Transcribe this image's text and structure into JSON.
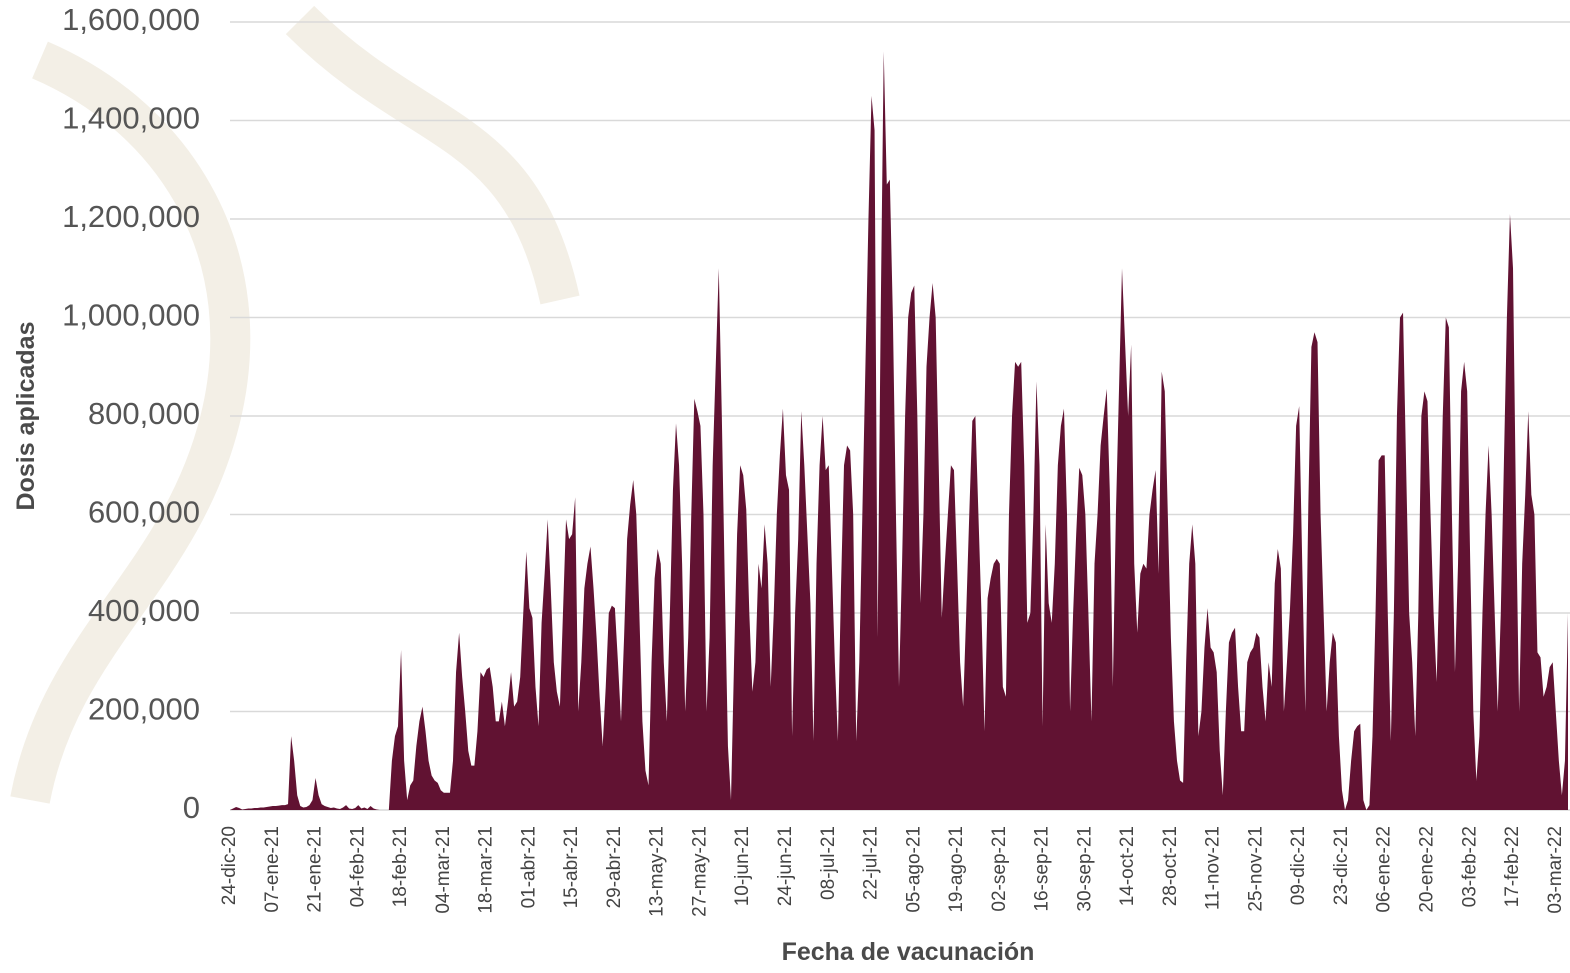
{
  "chart_data": {
    "type": "area",
    "x_label": "Fecha de vacunación",
    "y_label": "Dosis aplicadas",
    "color": "#611232",
    "grid": true,
    "ylim": [
      0,
      1600000
    ],
    "yticks": [
      {
        "value": 0,
        "label": "0"
      },
      {
        "value": 200000,
        "label": "200,000"
      },
      {
        "value": 400000,
        "label": "400,000"
      },
      {
        "value": 600000,
        "label": "600,000"
      },
      {
        "value": 800000,
        "label": "800,000"
      },
      {
        "value": 1000000,
        "label": "1,000,000"
      },
      {
        "value": 1200000,
        "label": "1,200,000"
      },
      {
        "value": 1400000,
        "label": "1,400,000"
      },
      {
        "value": 1600000,
        "label": "1,600,000"
      }
    ],
    "categories": [
      "24-dic-20",
      null,
      null,
      null,
      null,
      null,
      null,
      null,
      null,
      null,
      null,
      null,
      null,
      null,
      "07-ene-21",
      null,
      null,
      null,
      null,
      null,
      null,
      null,
      null,
      null,
      null,
      null,
      null,
      null,
      "21-ene-21",
      null,
      null,
      null,
      null,
      null,
      null,
      null,
      null,
      null,
      null,
      null,
      null,
      null,
      "04-feb-21",
      null,
      null,
      null,
      null,
      null,
      null,
      null,
      null,
      null,
      null,
      null,
      null,
      null,
      "18-feb-21",
      null,
      null,
      null,
      null,
      null,
      null,
      null,
      null,
      null,
      null,
      null,
      null,
      null,
      "04-mar-21",
      null,
      null,
      null,
      null,
      null,
      null,
      null,
      null,
      null,
      null,
      null,
      null,
      null,
      "18-mar-21",
      null,
      null,
      null,
      null,
      null,
      null,
      null,
      null,
      null,
      null,
      null,
      null,
      null,
      "01-abr-21",
      null,
      null,
      null,
      null,
      null,
      null,
      null,
      null,
      null,
      null,
      null,
      null,
      null,
      "15-abr-21",
      null,
      null,
      null,
      null,
      null,
      null,
      null,
      null,
      null,
      null,
      null,
      null,
      null,
      "29-abr-21",
      null,
      null,
      null,
      null,
      null,
      null,
      null,
      null,
      null,
      null,
      null,
      null,
      null,
      "13-may-21",
      null,
      null,
      null,
      null,
      null,
      null,
      null,
      null,
      null,
      null,
      null,
      null,
      null,
      "27-may-21",
      null,
      null,
      null,
      null,
      null,
      null,
      null,
      null,
      null,
      null,
      null,
      null,
      null,
      "10-jun-21",
      null,
      null,
      null,
      null,
      null,
      null,
      null,
      null,
      null,
      null,
      null,
      null,
      null,
      "24-jun-21",
      null,
      null,
      null,
      null,
      null,
      null,
      null,
      null,
      null,
      null,
      null,
      null,
      null,
      "08-jul-21",
      null,
      null,
      null,
      null,
      null,
      null,
      null,
      null,
      null,
      null,
      null,
      null,
      null,
      "22-jul-21",
      null,
      null,
      null,
      null,
      null,
      null,
      null,
      null,
      null,
      null,
      null,
      null,
      null,
      "05-ago-21",
      null,
      null,
      null,
      null,
      null,
      null,
      null,
      null,
      null,
      null,
      null,
      null,
      null,
      "19-ago-21",
      null,
      null,
      null,
      null,
      null,
      null,
      null,
      null,
      null,
      null,
      null,
      null,
      null,
      "02-sep-21",
      null,
      null,
      null,
      null,
      null,
      null,
      null,
      null,
      null,
      null,
      null,
      null,
      null,
      "16-sep-21",
      null,
      null,
      null,
      null,
      null,
      null,
      null,
      null,
      null,
      null,
      null,
      null,
      null,
      "30-sep-21",
      null,
      null,
      null,
      null,
      null,
      null,
      null,
      null,
      null,
      null,
      null,
      null,
      null,
      "14-oct-21",
      null,
      null,
      null,
      null,
      null,
      null,
      null,
      null,
      null,
      null,
      null,
      null,
      null,
      "28-oct-21",
      null,
      null,
      null,
      null,
      null,
      null,
      null,
      null,
      null,
      null,
      null,
      null,
      null,
      "11-nov-21",
      null,
      null,
      null,
      null,
      null,
      null,
      null,
      null,
      null,
      null,
      null,
      null,
      null,
      "25-nov-21",
      null,
      null,
      null,
      null,
      null,
      null,
      null,
      null,
      null,
      null,
      null,
      null,
      null,
      "09-dic-21",
      null,
      null,
      null,
      null,
      null,
      null,
      null,
      null,
      null,
      null,
      null,
      null,
      null,
      "23-dic-21",
      null,
      null,
      null,
      null,
      null,
      null,
      null,
      null,
      null,
      null,
      null,
      null,
      null,
      "06-ene-22",
      null,
      null,
      null,
      null,
      null,
      null,
      null,
      null,
      null,
      null,
      null,
      null,
      null,
      "20-ene-22",
      null,
      null,
      null,
      null,
      null,
      null,
      null,
      null,
      null,
      null,
      null,
      null,
      null,
      "03-feb-22",
      null,
      null,
      null,
      null,
      null,
      null,
      null,
      null,
      null,
      null,
      null,
      null,
      null,
      "17-feb-22",
      null,
      null,
      null,
      null,
      null,
      null,
      null,
      null,
      null,
      null,
      null,
      null,
      null,
      "03-mar-22",
      null,
      null,
      null,
      null
    ],
    "values": [
      0,
      3000,
      6000,
      4000,
      1000,
      2000,
      3000,
      3000,
      4000,
      4000,
      5000,
      5000,
      6000,
      7000,
      8000,
      8000,
      9000,
      10000,
      10000,
      12000,
      150000,
      100000,
      30000,
      8000,
      5000,
      6000,
      10000,
      20000,
      65000,
      30000,
      12000,
      8000,
      6000,
      4000,
      5000,
      3000,
      2000,
      5000,
      10000,
      3000,
      2000,
      4000,
      10000,
      3000,
      5000,
      2000,
      8000,
      3000,
      1000,
      0,
      0,
      0,
      0,
      100000,
      150000,
      170000,
      325000,
      100000,
      20000,
      50000,
      60000,
      130000,
      180000,
      210000,
      160000,
      100000,
      70000,
      60000,
      55000,
      40000,
      35000,
      35000,
      35000,
      100000,
      280000,
      360000,
      270000,
      200000,
      120000,
      90000,
      90000,
      160000,
      280000,
      270000,
      285000,
      290000,
      250000,
      180000,
      180000,
      220000,
      170000,
      220000,
      280000,
      210000,
      220000,
      270000,
      400000,
      525000,
      410000,
      390000,
      250000,
      170000,
      380000,
      480000,
      590000,
      450000,
      300000,
      240000,
      210000,
      400000,
      590000,
      550000,
      560000,
      635000,
      200000,
      300000,
      450000,
      500000,
      535000,
      450000,
      350000,
      230000,
      130000,
      250000,
      400000,
      415000,
      410000,
      300000,
      180000,
      350000,
      550000,
      620000,
      670000,
      600000,
      400000,
      180000,
      80000,
      50000,
      300000,
      470000,
      530000,
      500000,
      300000,
      180000,
      400000,
      650000,
      785000,
      700000,
      500000,
      200000,
      350000,
      600000,
      835000,
      810000,
      780000,
      600000,
      200000,
      350000,
      700000,
      900000,
      1100000,
      800000,
      450000,
      130000,
      20000,
      300000,
      560000,
      700000,
      680000,
      610000,
      400000,
      240000,
      300000,
      500000,
      450000,
      580000,
      500000,
      250000,
      400000,
      600000,
      720000,
      815000,
      680000,
      650000,
      150000,
      400000,
      550000,
      810000,
      700000,
      560000,
      420000,
      140000,
      500000,
      700000,
      800000,
      690000,
      700000,
      500000,
      300000,
      140000,
      450000,
      700000,
      740000,
      730000,
      600000,
      140000,
      300000,
      600000,
      900000,
      1200000,
      1450000,
      1380000,
      350000,
      1000000,
      1540000,
      1270000,
      1280000,
      1000000,
      600000,
      250000,
      500000,
      800000,
      1000000,
      1050000,
      1065000,
      800000,
      420000,
      600000,
      900000,
      1000000,
      1070000,
      1000000,
      700000,
      390000,
      500000,
      600000,
      700000,
      690000,
      500000,
      300000,
      210000,
      400000,
      600000,
      790000,
      800000,
      600000,
      400000,
      160000,
      430000,
      470000,
      500000,
      510000,
      500000,
      250000,
      230000,
      600000,
      800000,
      910000,
      900000,
      910000,
      700000,
      380000,
      400000,
      600000,
      870000,
      700000,
      170000,
      580000,
      420000,
      380000,
      500000,
      700000,
      780000,
      815000,
      600000,
      200000,
      400000,
      560000,
      695000,
      680000,
      600000,
      400000,
      180000,
      500000,
      600000,
      740000,
      800000,
      855000,
      650000,
      250000,
      600000,
      850000,
      1100000,
      950000,
      800000,
      945000,
      500000,
      360000,
      480000,
      500000,
      490000,
      600000,
      650000,
      690000,
      480000,
      890000,
      850000,
      600000,
      350000,
      180000,
      100000,
      60000,
      55000,
      300000,
      500000,
      580000,
      500000,
      150000,
      200000,
      330000,
      410000,
      330000,
      320000,
      280000,
      120000,
      30000,
      200000,
      340000,
      360000,
      370000,
      250000,
      160000,
      160000,
      300000,
      320000,
      330000,
      360000,
      350000,
      250000,
      180000,
      300000,
      250000,
      460000,
      530000,
      490000,
      200000,
      300000,
      410000,
      560000,
      780000,
      820000,
      500000,
      200000,
      620000,
      940000,
      970000,
      950000,
      600000,
      400000,
      200000,
      300000,
      360000,
      340000,
      150000,
      40000,
      0,
      20000,
      100000,
      160000,
      170000,
      175000,
      20000,
      0,
      10000,
      150000,
      400000,
      710000,
      720000,
      720000,
      400000,
      140000,
      400000,
      800000,
      1000000,
      1010000,
      700000,
      400000,
      300000,
      150000,
      400000,
      800000,
      850000,
      830000,
      600000,
      400000,
      260000,
      500000,
      800000,
      1000000,
      980000,
      600000,
      280000,
      500000,
      850000,
      910000,
      850000,
      500000,
      200000,
      60000,
      150000,
      400000,
      600000,
      740000,
      600000,
      400000,
      200000,
      400000,
      700000,
      1000000,
      1210000,
      1100000,
      600000,
      200000,
      500000,
      640000,
      810000,
      640000,
      600000,
      320000,
      310000,
      230000,
      250000,
      290000,
      300000,
      200000,
      100000,
      30000,
      100000,
      400000
    ]
  }
}
